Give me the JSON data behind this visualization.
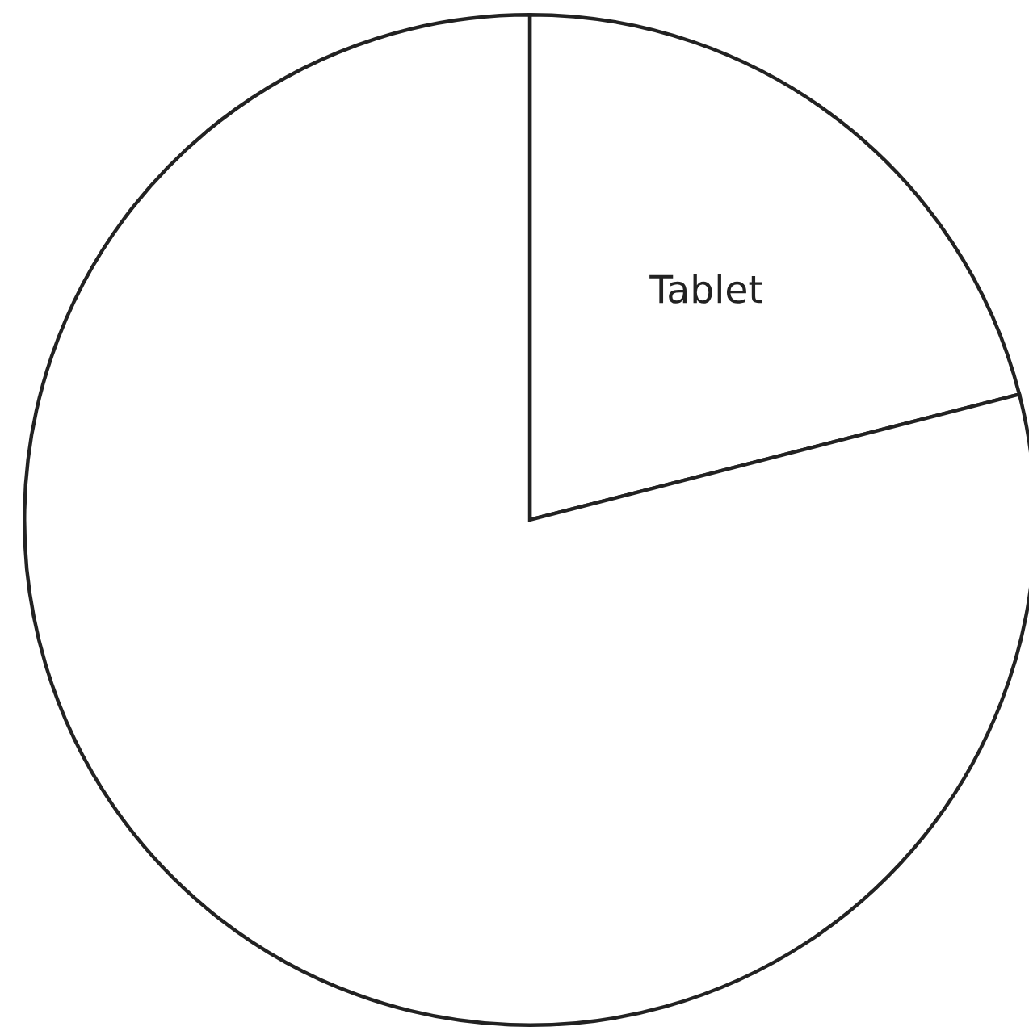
{
  "chart_data": {
    "type": "pie",
    "categories": [
      "Tablet",
      null
    ],
    "values": [
      21,
      79
    ],
    "colors": [
      "#ffffff",
      "#ffffff"
    ]
  }
}
